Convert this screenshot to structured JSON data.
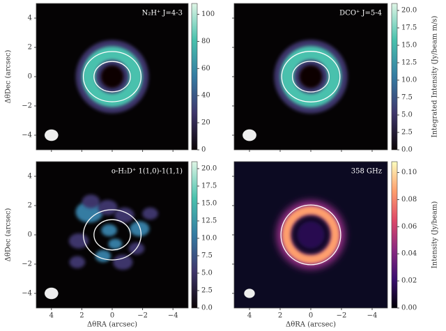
{
  "chart_data": [
    {
      "type": "image",
      "title": "N₂H⁺ J=4-3",
      "colormap": "mako",
      "ylabel": "ΔθDec (arcsec)",
      "xlim": [
        5,
        -5
      ],
      "ylim": [
        -5,
        5
      ],
      "xticks": [
        4,
        2,
        0,
        -2,
        -4
      ],
      "yticks": [
        {
          "value": 4,
          "label": "4"
        },
        {
          "value": 2,
          "label": "2"
        },
        {
          "value": 0,
          "label": "0"
        },
        {
          "value": -2,
          "label": "−2"
        },
        {
          "value": -4,
          "label": "−4"
        }
      ],
      "clim": [
        0,
        108
      ],
      "cticks": [
        0,
        20,
        40,
        60,
        80,
        100
      ]
    },
    {
      "type": "image",
      "title": "DCO⁺ J=5-4",
      "colormap": "mako",
      "colorbar_label": "Integrated Intensity (Jy/beam m/s)",
      "xlim": [
        5,
        -5
      ],
      "ylim": [
        -5,
        5
      ],
      "xticks": [
        4,
        2,
        0,
        -2,
        -4
      ],
      "yticks": [
        4,
        2,
        0,
        -2,
        -4
      ],
      "clim": [
        0,
        21
      ],
      "cticks": [
        {
          "value": 0,
          "label": "0.0"
        },
        {
          "value": 2.5,
          "label": "2.5"
        },
        {
          "value": 5,
          "label": "5.0"
        },
        {
          "value": 7.5,
          "label": "7.5"
        },
        {
          "value": 10,
          "label": "10.0"
        },
        {
          "value": 12.5,
          "label": "12.5"
        },
        {
          "value": 15,
          "label": "15.0"
        },
        {
          "value": 17.5,
          "label": "17.5"
        },
        {
          "value": 20,
          "label": "20.0"
        }
      ]
    },
    {
      "type": "image",
      "title": "o-H₂D⁺ 1(1,0)-1(1,1)",
      "colormap": "mako",
      "ylabel": "ΔθDec (arcsec)",
      "xlabel": "ΔθRA (arcsec)",
      "xlim": [
        5,
        -5
      ],
      "ylim": [
        -5,
        5
      ],
      "xticks": [
        {
          "value": 4,
          "label": "4"
        },
        {
          "value": 2,
          "label": "2"
        },
        {
          "value": 0,
          "label": "0"
        },
        {
          "value": -2,
          "label": "−2"
        },
        {
          "value": -4,
          "label": "−4"
        }
      ],
      "yticks": [
        {
          "value": 4,
          "label": "4"
        },
        {
          "value": 2,
          "label": "2"
        },
        {
          "value": 0,
          "label": "0"
        },
        {
          "value": -2,
          "label": "−2"
        },
        {
          "value": -4,
          "label": "−4"
        }
      ],
      "clim": [
        0,
        21
      ],
      "cticks": [
        {
          "value": 0,
          "label": "0.0"
        },
        {
          "value": 2.5,
          "label": "2.5"
        },
        {
          "value": 5,
          "label": "5.0"
        },
        {
          "value": 7.5,
          "label": "7.5"
        },
        {
          "value": 10,
          "label": "10.0"
        },
        {
          "value": 12.5,
          "label": "12.5"
        },
        {
          "value": 15,
          "label": "15.0"
        },
        {
          "value": 17.5,
          "label": "17.5"
        },
        {
          "value": 20,
          "label": "20.0"
        }
      ]
    },
    {
      "type": "image",
      "title": "358 GHz",
      "colormap": "magma",
      "xlabel": "ΔθRA (arcsec)",
      "colorbar_label": "Intensity (Jy/beam)",
      "xlim": [
        5,
        -5
      ],
      "ylim": [
        -5,
        5
      ],
      "xticks": [
        {
          "value": 4,
          "label": "4"
        },
        {
          "value": 2,
          "label": "2"
        },
        {
          "value": 0,
          "label": "0"
        },
        {
          "value": -2,
          "label": "−2"
        },
        {
          "value": -4,
          "label": "−4"
        }
      ],
      "yticks": [
        4,
        2,
        0,
        -2,
        -4
      ],
      "clim": [
        0,
        0.108
      ],
      "cticks": [
        {
          "value": 0,
          "label": "0.00"
        },
        {
          "value": 0.02,
          "label": "0.02"
        },
        {
          "value": 0.04,
          "label": "0.04"
        },
        {
          "value": 0.06,
          "label": "0.06"
        },
        {
          "value": 0.08,
          "label": "0.08"
        },
        {
          "value": 0.1,
          "label": "0.10"
        }
      ]
    }
  ]
}
